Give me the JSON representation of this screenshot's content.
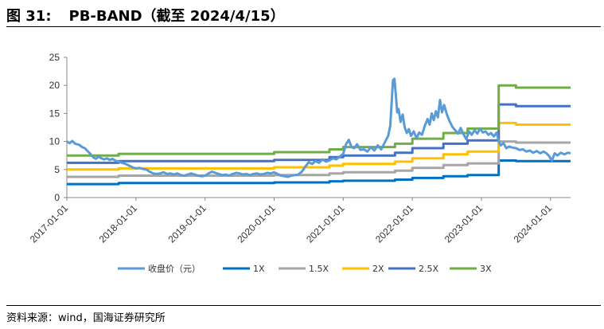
{
  "header": {
    "figure_label": "图 31:",
    "title": "PB-BAND（截至 2024/4/15）"
  },
  "source": "资料来源：wind，国海证券研究所",
  "chart_data": {
    "type": "line",
    "title": "PB-BAND（截至 2024/4/15）",
    "xlabel": "",
    "ylabel": "",
    "ylim": [
      0,
      25
    ],
    "yticks": [
      0,
      5,
      10,
      15,
      20,
      25
    ],
    "xlim": [
      2017.0,
      2024.29
    ],
    "xticks": [
      {
        "v": 2017.0,
        "label": "2017-01-01"
      },
      {
        "v": 2018.0,
        "label": "2018-01-01"
      },
      {
        "v": 2019.0,
        "label": "2019-01-01"
      },
      {
        "v": 2020.0,
        "label": "2020-01-01"
      },
      {
        "v": 2021.0,
        "label": "2021-01-01"
      },
      {
        "v": 2022.0,
        "label": "2022-01-01"
      },
      {
        "v": 2023.0,
        "label": "2023-01-01"
      },
      {
        "v": 2024.0,
        "label": "2024-01-01"
      }
    ],
    "series": [
      {
        "name": "收盘价（元）",
        "color": "#5B9BD5",
        "width": 3,
        "points": [
          [
            2017.0,
            10.0
          ],
          [
            2017.04,
            9.7
          ],
          [
            2017.08,
            10.1
          ],
          [
            2017.12,
            9.6
          ],
          [
            2017.18,
            9.4
          ],
          [
            2017.22,
            9.0
          ],
          [
            2017.26,
            8.8
          ],
          [
            2017.3,
            8.3
          ],
          [
            2017.34,
            7.8
          ],
          [
            2017.38,
            7.2
          ],
          [
            2017.42,
            6.9
          ],
          [
            2017.46,
            7.3
          ],
          [
            2017.5,
            7.0
          ],
          [
            2017.54,
            6.8
          ],
          [
            2017.58,
            7.0
          ],
          [
            2017.62,
            6.7
          ],
          [
            2017.66,
            6.9
          ],
          [
            2017.7,
            6.6
          ],
          [
            2017.75,
            6.4
          ],
          [
            2017.8,
            6.2
          ],
          [
            2017.85,
            6.0
          ],
          [
            2017.9,
            5.7
          ],
          [
            2017.95,
            5.4
          ],
          [
            2018.0,
            5.2
          ],
          [
            2018.05,
            5.3
          ],
          [
            2018.1,
            5.1
          ],
          [
            2018.15,
            5.0
          ],
          [
            2018.2,
            4.6
          ],
          [
            2018.25,
            4.3
          ],
          [
            2018.3,
            4.2
          ],
          [
            2018.35,
            4.3
          ],
          [
            2018.4,
            4.5
          ],
          [
            2018.45,
            4.2
          ],
          [
            2018.5,
            4.3
          ],
          [
            2018.55,
            4.1
          ],
          [
            2018.6,
            4.3
          ],
          [
            2018.65,
            4.0
          ],
          [
            2018.7,
            3.9
          ],
          [
            2018.75,
            4.1
          ],
          [
            2018.8,
            4.3
          ],
          [
            2018.85,
            4.1
          ],
          [
            2018.9,
            3.9
          ],
          [
            2018.95,
            3.8
          ],
          [
            2019.0,
            3.9
          ],
          [
            2019.05,
            4.3
          ],
          [
            2019.1,
            4.6
          ],
          [
            2019.15,
            4.4
          ],
          [
            2019.2,
            4.2
          ],
          [
            2019.25,
            4.0
          ],
          [
            2019.3,
            4.1
          ],
          [
            2019.35,
            3.9
          ],
          [
            2019.4,
            4.2
          ],
          [
            2019.45,
            4.4
          ],
          [
            2019.5,
            4.3
          ],
          [
            2019.55,
            4.1
          ],
          [
            2019.6,
            4.2
          ],
          [
            2019.65,
            4.0
          ],
          [
            2019.7,
            4.2
          ],
          [
            2019.75,
            4.3
          ],
          [
            2019.8,
            4.1
          ],
          [
            2019.85,
            4.2
          ],
          [
            2019.9,
            4.4
          ],
          [
            2019.95,
            4.3
          ],
          [
            2020.0,
            4.5
          ],
          [
            2020.05,
            4.2
          ],
          [
            2020.1,
            3.9
          ],
          [
            2020.15,
            3.8
          ],
          [
            2020.2,
            3.7
          ],
          [
            2020.25,
            3.9
          ],
          [
            2020.3,
            4.0
          ],
          [
            2020.35,
            4.1
          ],
          [
            2020.4,
            4.6
          ],
          [
            2020.45,
            5.5
          ],
          [
            2020.5,
            6.3
          ],
          [
            2020.55,
            6.0
          ],
          [
            2020.6,
            6.5
          ],
          [
            2020.65,
            6.2
          ],
          [
            2020.7,
            6.8
          ],
          [
            2020.75,
            6.4
          ],
          [
            2020.8,
            6.6
          ],
          [
            2020.85,
            7.0
          ],
          [
            2020.9,
            6.8
          ],
          [
            2020.95,
            7.3
          ],
          [
            2021.0,
            7.8
          ],
          [
            2021.04,
            9.5
          ],
          [
            2021.08,
            10.3
          ],
          [
            2021.12,
            9.0
          ],
          [
            2021.16,
            8.8
          ],
          [
            2021.2,
            9.5
          ],
          [
            2021.25,
            8.5
          ],
          [
            2021.3,
            8.6
          ],
          [
            2021.35,
            8.2
          ],
          [
            2021.4,
            9.0
          ],
          [
            2021.45,
            8.4
          ],
          [
            2021.5,
            9.3
          ],
          [
            2021.55,
            8.6
          ],
          [
            2021.6,
            9.8
          ],
          [
            2021.65,
            11.0
          ],
          [
            2021.68,
            12.8
          ],
          [
            2021.7,
            16.8
          ],
          [
            2021.72,
            20.9
          ],
          [
            2021.74,
            21.2
          ],
          [
            2021.76,
            18.5
          ],
          [
            2021.78,
            15.2
          ],
          [
            2021.8,
            15.8
          ],
          [
            2021.83,
            13.5
          ],
          [
            2021.86,
            14.8
          ],
          [
            2021.89,
            12.5
          ],
          [
            2021.92,
            11.5
          ],
          [
            2021.95,
            12.2
          ],
          [
            2021.98,
            11.0
          ],
          [
            2022.02,
            11.8
          ],
          [
            2022.06,
            10.6
          ],
          [
            2022.1,
            11.6
          ],
          [
            2022.14,
            11.2
          ],
          [
            2022.18,
            12.8
          ],
          [
            2022.22,
            14.0
          ],
          [
            2022.25,
            13.0
          ],
          [
            2022.28,
            15.0
          ],
          [
            2022.31,
            13.8
          ],
          [
            2022.34,
            15.4
          ],
          [
            2022.37,
            14.3
          ],
          [
            2022.4,
            17.4
          ],
          [
            2022.43,
            15.2
          ],
          [
            2022.46,
            16.5
          ],
          [
            2022.5,
            14.8
          ],
          [
            2022.54,
            13.6
          ],
          [
            2022.58,
            12.6
          ],
          [
            2022.62,
            12.0
          ],
          [
            2022.66,
            11.4
          ],
          [
            2022.7,
            12.4
          ],
          [
            2022.74,
            11.3
          ],
          [
            2022.78,
            10.4
          ],
          [
            2022.82,
            11.8
          ],
          [
            2022.86,
            11.2
          ],
          [
            2022.9,
            12.0
          ],
          [
            2022.94,
            11.4
          ],
          [
            2022.98,
            12.3
          ],
          [
            2023.02,
            11.6
          ],
          [
            2023.06,
            11.8
          ],
          [
            2023.1,
            11.2
          ],
          [
            2023.14,
            11.5
          ],
          [
            2023.18,
            10.9
          ],
          [
            2023.22,
            11.6
          ],
          [
            2023.25,
            10.0
          ],
          [
            2023.28,
            9.3
          ],
          [
            2023.32,
            9.7
          ],
          [
            2023.36,
            8.8
          ],
          [
            2023.4,
            9.1
          ],
          [
            2023.45,
            8.9
          ],
          [
            2023.5,
            8.8
          ],
          [
            2023.55,
            8.5
          ],
          [
            2023.6,
            8.6
          ],
          [
            2023.65,
            8.2
          ],
          [
            2023.7,
            8.4
          ],
          [
            2023.75,
            8.0
          ],
          [
            2023.8,
            8.3
          ],
          [
            2023.85,
            7.9
          ],
          [
            2023.9,
            8.2
          ],
          [
            2023.94,
            7.9
          ],
          [
            2023.98,
            7.4
          ],
          [
            2024.02,
            6.6
          ],
          [
            2024.06,
            7.9
          ],
          [
            2024.1,
            7.5
          ],
          [
            2024.15,
            8.0
          ],
          [
            2024.2,
            7.7
          ],
          [
            2024.25,
            8.0
          ],
          [
            2024.29,
            7.9
          ]
        ]
      },
      {
        "name": "1X",
        "color": "#0070C0",
        "width": 3,
        "steps": [
          [
            2017.0,
            2.4
          ],
          [
            2017.75,
            2.6
          ],
          [
            2020.0,
            2.7
          ],
          [
            2020.8,
            2.9
          ],
          [
            2021.0,
            3.0
          ],
          [
            2021.75,
            3.2
          ],
          [
            2022.0,
            3.5
          ],
          [
            2022.45,
            3.8
          ],
          [
            2022.8,
            4.0
          ],
          [
            2023.25,
            6.6
          ],
          [
            2023.5,
            6.5
          ],
          [
            2024.29,
            6.5
          ]
        ]
      },
      {
        "name": "1.5X",
        "color": "#A6A6A6",
        "width": 3,
        "steps": [
          [
            2017.0,
            3.7
          ],
          [
            2017.75,
            3.9
          ],
          [
            2020.0,
            4.0
          ],
          [
            2020.8,
            4.3
          ],
          [
            2021.0,
            4.5
          ],
          [
            2021.75,
            4.8
          ],
          [
            2022.0,
            5.3
          ],
          [
            2022.45,
            5.8
          ],
          [
            2022.8,
            6.1
          ],
          [
            2023.25,
            10.0
          ],
          [
            2023.5,
            9.8
          ],
          [
            2024.29,
            9.8
          ]
        ]
      },
      {
        "name": "2X",
        "color": "#FFC000",
        "width": 3,
        "steps": [
          [
            2017.0,
            5.0
          ],
          [
            2017.75,
            5.2
          ],
          [
            2020.0,
            5.4
          ],
          [
            2020.8,
            5.7
          ],
          [
            2021.0,
            6.0
          ],
          [
            2021.75,
            6.4
          ],
          [
            2022.0,
            7.0
          ],
          [
            2022.45,
            7.7
          ],
          [
            2022.8,
            8.2
          ],
          [
            2023.25,
            13.3
          ],
          [
            2023.5,
            13.0
          ],
          [
            2024.29,
            13.0
          ]
        ]
      },
      {
        "name": "2.5X",
        "color": "#4472C4",
        "width": 3,
        "steps": [
          [
            2017.0,
            6.2
          ],
          [
            2017.75,
            6.5
          ],
          [
            2020.0,
            6.7
          ],
          [
            2020.8,
            7.2
          ],
          [
            2021.0,
            7.5
          ],
          [
            2021.75,
            8.0
          ],
          [
            2022.0,
            8.8
          ],
          [
            2022.45,
            9.6
          ],
          [
            2022.8,
            10.2
          ],
          [
            2023.25,
            16.6
          ],
          [
            2023.5,
            16.3
          ],
          [
            2024.29,
            16.3
          ]
        ]
      },
      {
        "name": "3X",
        "color": "#70AD47",
        "width": 3,
        "steps": [
          [
            2017.0,
            7.5
          ],
          [
            2017.75,
            7.8
          ],
          [
            2020.0,
            8.1
          ],
          [
            2020.8,
            8.6
          ],
          [
            2021.0,
            9.0
          ],
          [
            2021.75,
            9.6
          ],
          [
            2022.0,
            10.5
          ],
          [
            2022.45,
            11.5
          ],
          [
            2022.8,
            12.3
          ],
          [
            2023.25,
            20.0
          ],
          [
            2023.5,
            19.6
          ],
          [
            2024.29,
            19.6
          ]
        ]
      }
    ],
    "legend_position": "bottom"
  }
}
